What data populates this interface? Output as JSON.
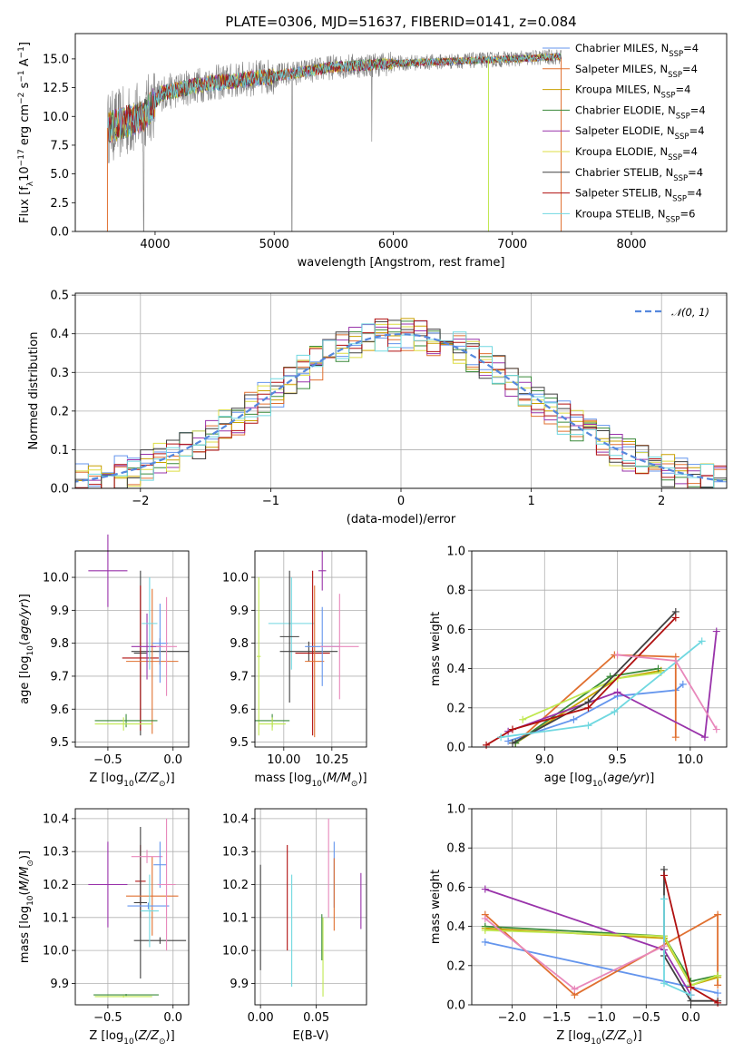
{
  "chart_data": [
    {
      "id": "spectrum",
      "type": "line",
      "title": "PLATE=0306, MJD=51637, FIBERID=0141, z=0.084",
      "xlabel": "wavelength [Angstrom, rest frame]",
      "ylabel": "Flux [f_λ 10^-17 erg cm^-2 s^-1 A^-1]",
      "xlim": [
        3330,
        8800
      ],
      "ylim": [
        0,
        17.2
      ],
      "xticks": [
        "4000",
        "5000",
        "6000",
        "7000",
        "8000"
      ],
      "yticks": [
        "0.0",
        "2.5",
        "5.0",
        "7.5",
        "10.0",
        "12.5",
        "15.0"
      ],
      "data_line": {
        "x_start": 3600,
        "x_end": 7410,
        "color": "#808080"
      },
      "continuum": [
        [
          3600,
          9.0
        ],
        [
          3900,
          10.0
        ],
        [
          4050,
          12.0
        ],
        [
          4400,
          12.8
        ],
        [
          5000,
          13.5
        ],
        [
          5500,
          14.3
        ],
        [
          6000,
          14.6
        ],
        [
          6500,
          14.8
        ],
        [
          7000,
          15.0
        ],
        [
          7400,
          15.2
        ]
      ],
      "legend": [
        {
          "label": "Chabrier MILES, N",
          "sub": "SSP",
          "val": "=4",
          "color": "#6495ed"
        },
        {
          "label": "Salpeter MILES, N",
          "sub": "SSP",
          "val": "=4",
          "color": "#e07030"
        },
        {
          "label": "Kroupa MILES, N",
          "sub": "SSP",
          "val": "=4",
          "color": "#c8a000"
        },
        {
          "label": "Chabrier ELODIE, N",
          "sub": "SSP",
          "val": "=4",
          "color": "#3a8a3a"
        },
        {
          "label": "Salpeter ELODIE, N",
          "sub": "SSP",
          "val": "=4",
          "color": "#9933aa"
        },
        {
          "label": "Kroupa ELODIE, N",
          "sub": "SSP",
          "val": "=4",
          "color": "#dddd44"
        },
        {
          "label": "Chabrier STELIB, N",
          "sub": "SSP",
          "val": "=4",
          "color": "#404040"
        },
        {
          "label": "Salpeter STELIB, N",
          "sub": "SSP",
          "val": "=4",
          "color": "#b01010"
        },
        {
          "label": "Kroupa STELIB, N",
          "sub": "SSP",
          "val": "=6",
          "color": "#70d8e0"
        }
      ]
    },
    {
      "id": "residuals",
      "type": "histogram",
      "xlabel": "(data-model)/error",
      "ylabel": "Normed distribution",
      "xlim": [
        -2.5,
        2.5
      ],
      "ylim": [
        0,
        0.505
      ],
      "xticks": [
        "−2",
        "−1",
        "0",
        "1",
        "2"
      ],
      "yticks": [
        "0.0",
        "0.1",
        "0.2",
        "0.3",
        "0.4",
        "0.5"
      ],
      "bin_width": 0.1,
      "legend": [
        {
          "label": "𝒩(0, 1)",
          "color": "#5588dd"
        }
      ]
    },
    {
      "id": "age_vs_Z",
      "type": "errorbar",
      "xlabel": "Z [log10(Z/Z⊙)]",
      "ylabel": "age [log10(age/yr)]",
      "xlim": [
        -0.75,
        0.12
      ],
      "ylim": [
        9.485,
        10.08
      ],
      "xticks": [
        "−0.5",
        "0.0"
      ],
      "yticks": [
        "9.5",
        "9.6",
        "9.7",
        "9.8",
        "9.9",
        "10.0"
      ],
      "points": [
        {
          "x": -0.5,
          "xerr": 0.15,
          "y": 10.02,
          "yerr": 0.11,
          "color": "#9933aa"
        },
        {
          "x": -0.25,
          "xerr": 0.05,
          "y": 9.77,
          "yerr": 0.25,
          "color": "#404040"
        },
        {
          "x": -0.1,
          "xerr": 0.22,
          "y": 9.775,
          "yerr": 0.04,
          "color": "#404040"
        },
        {
          "x": -0.25,
          "xerr": 0.14,
          "y": 9.755,
          "yerr": 0.22,
          "color": "#b01010"
        },
        {
          "x": -0.16,
          "xerr": 0.2,
          "y": 9.745,
          "yerr": 0.22,
          "color": "#e07030"
        },
        {
          "x": -0.1,
          "xerr": 0.06,
          "y": 9.8,
          "yerr": 0.12,
          "color": "#6495ed"
        },
        {
          "x": -0.2,
          "xerr": 0.12,
          "y": 9.79,
          "yerr": 0.1,
          "color": "#9933aa"
        },
        {
          "x": -0.05,
          "xerr": 0.08,
          "y": 9.79,
          "yerr": 0.15,
          "color": "#e888bb"
        },
        {
          "x": -0.18,
          "xerr": 0.06,
          "y": 9.86,
          "yerr": 0.14,
          "color": "#70d8e0"
        },
        {
          "x": -0.36,
          "xerr": 0.24,
          "y": 9.565,
          "yerr": 0.02,
          "color": "#3a8a3a"
        },
        {
          "x": -0.38,
          "xerr": 0.22,
          "y": 9.555,
          "yerr": 0.02,
          "color": "#c0e850"
        }
      ]
    },
    {
      "id": "age_vs_mass",
      "type": "errorbar",
      "xlabel": "mass [log10(M/M⊙)]",
      "xlim": [
        9.85,
        10.43
      ],
      "ylim": [
        9.485,
        10.08
      ],
      "xticks": [
        "10.00",
        "10.25"
      ],
      "yticks": [
        "9.5",
        "9.6",
        "9.7",
        "9.8",
        "9.9",
        "10.0"
      ],
      "points": [
        {
          "x": 9.87,
          "xerr": 0.01,
          "y": 9.76,
          "yerr": 0.24,
          "color": "#c0e850"
        },
        {
          "x": 10.04,
          "xerr": 0.12,
          "y": 9.86,
          "yerr": 0.14,
          "color": "#70d8e0"
        },
        {
          "x": 10.03,
          "xerr": 0.05,
          "y": 9.82,
          "yerr": 0.2,
          "color": "#404040"
        },
        {
          "x": 10.13,
          "xerr": 0.15,
          "y": 9.775,
          "yerr": 0.03,
          "color": "#404040"
        },
        {
          "x": 10.15,
          "xerr": 0.09,
          "y": 9.77,
          "yerr": 0.25,
          "color": "#b01010"
        },
        {
          "x": 10.16,
          "xerr": 0.05,
          "y": 9.745,
          "yerr": 0.23,
          "color": "#e07030"
        },
        {
          "x": 10.2,
          "xerr": 0.09,
          "y": 9.79,
          "yerr": 0.12,
          "color": "#6495ed"
        },
        {
          "x": 10.2,
          "xerr": 0.02,
          "y": 10.02,
          "yerr": 0.06,
          "color": "#9933aa"
        },
        {
          "x": 10.29,
          "xerr": 0.1,
          "y": 9.79,
          "yerr": 0.16,
          "color": "#e888bb"
        },
        {
          "x": 9.94,
          "xerr": 0.09,
          "y": 9.565,
          "yerr": 0.02,
          "color": "#3a8a3a"
        },
        {
          "x": 9.94,
          "xerr": 0.07,
          "y": 9.555,
          "yerr": 0.02,
          "color": "#c0e850"
        }
      ]
    },
    {
      "id": "weight_vs_age",
      "type": "line",
      "xlabel": "age [log10(age/yr)]",
      "ylabel": "mass weight",
      "xlim": [
        8.5,
        10.25
      ],
      "ylim": [
        0,
        1.0
      ],
      "xticks": [
        "9.0",
        "9.5",
        "10.0"
      ],
      "yticks": [
        "0.0",
        "0.2",
        "0.4",
        "0.6",
        "0.8",
        "1.0"
      ],
      "series": [
        {
          "color": "#6495ed",
          "x": [
            8.75,
            9.2,
            9.5,
            9.9,
            9.95
          ],
          "y": [
            0.03,
            0.14,
            0.26,
            0.29,
            0.32
          ]
        },
        {
          "color": "#e07030",
          "x": [
            8.8,
            9.48,
            9.9,
            9.9
          ],
          "y": [
            0.02,
            0.47,
            0.46,
            0.05
          ]
        },
        {
          "color": "#c8a000",
          "x": [
            8.8,
            9.5,
            9.8
          ],
          "y": [
            0.02,
            0.35,
            0.39
          ]
        },
        {
          "color": "#3a8a3a",
          "x": [
            8.8,
            9.45,
            9.78
          ],
          "y": [
            0.02,
            0.36,
            0.4
          ]
        },
        {
          "color": "#9933aa",
          "x": [
            8.75,
            9.5,
            10.1,
            10.18
          ],
          "y": [
            0.08,
            0.28,
            0.05,
            0.59
          ]
        },
        {
          "color": "#c0e850",
          "x": [
            8.85,
            9.5,
            9.8
          ],
          "y": [
            0.14,
            0.35,
            0.38
          ]
        },
        {
          "color": "#404040",
          "x": [
            8.78,
            9.3,
            9.9
          ],
          "y": [
            0.02,
            0.23,
            0.69
          ]
        },
        {
          "color": "#b01010",
          "x": [
            8.6,
            8.78,
            9.3,
            9.9
          ],
          "y": [
            0.01,
            0.09,
            0.2,
            0.66
          ]
        },
        {
          "color": "#70d8e0",
          "x": [
            8.7,
            9.3,
            9.48,
            10.08
          ],
          "y": [
            0.05,
            0.11,
            0.18,
            0.54
          ]
        },
        {
          "color": "#e888bb",
          "x": [
            9.5,
            9.9,
            10.18
          ],
          "y": [
            0.47,
            0.44,
            0.09
          ]
        }
      ]
    },
    {
      "id": "mass_vs_Z",
      "type": "errorbar",
      "xlabel": "Z [log10(Z/Z⊙)]",
      "ylabel": "mass [log10(M/M⊙)]",
      "xlim": [
        -0.75,
        0.12
      ],
      "ylim": [
        9.835,
        10.43
      ],
      "xticks": [
        "−0.5",
        "0.0"
      ],
      "yticks": [
        "9.9",
        "10.0",
        "10.1",
        "10.2",
        "10.3",
        "10.4"
      ],
      "points": [
        {
          "x": -0.5,
          "xerr": 0.15,
          "y": 10.2,
          "yerr": 0.13,
          "color": "#9933aa"
        },
        {
          "x": -0.25,
          "xerr": 0.04,
          "y": 10.21,
          "yerr": 0.11,
          "color": "#b01010"
        },
        {
          "x": -0.25,
          "xerr": 0.05,
          "y": 10.145,
          "yerr": 0.23,
          "color": "#404040"
        },
        {
          "x": -0.1,
          "xerr": 0.2,
          "y": 10.03,
          "yerr": 0.01,
          "color": "#404040"
        },
        {
          "x": -0.16,
          "xerr": 0.2,
          "y": 10.165,
          "yerr": 0.12,
          "color": "#e07030"
        },
        {
          "x": -0.2,
          "xerr": 0.12,
          "y": 10.285,
          "yerr": 0.02,
          "color": "#e888bb"
        },
        {
          "x": -0.1,
          "xerr": 0.05,
          "y": 10.26,
          "yerr": 0.07,
          "color": "#6495ed"
        },
        {
          "x": -0.19,
          "xerr": 0.16,
          "y": 10.135,
          "yerr": 0.01,
          "color": "#6495ed"
        },
        {
          "x": -0.18,
          "xerr": 0.07,
          "y": 10.12,
          "yerr": 0.11,
          "color": "#70d8e0"
        },
        {
          "x": -0.05,
          "xerr": 0.07,
          "y": 10.2,
          "yerr": 0.2,
          "color": "#e888bb"
        },
        {
          "x": -0.36,
          "xerr": 0.25,
          "y": 9.865,
          "yerr": 0.003,
          "color": "#3a8a3a"
        },
        {
          "x": -0.38,
          "xerr": 0.22,
          "y": 9.86,
          "yerr": 0.003,
          "color": "#c0e850"
        }
      ]
    },
    {
      "id": "ebv",
      "type": "errorbar",
      "xlabel": "E(B-V)",
      "xlim": [
        -0.005,
        0.095
      ],
      "ylim": [
        9.835,
        10.43
      ],
      "xticks": [
        "0.00",
        "0.05"
      ],
      "yticks": [
        "9.9",
        "10.0",
        "10.1",
        "10.2",
        "10.3",
        "10.4"
      ],
      "points": [
        {
          "x": 0.0,
          "xerr": 0,
          "y": 10.1,
          "yerr": 0.16,
          "color": "#404040"
        },
        {
          "x": 0.024,
          "xerr": 0,
          "y": 10.16,
          "yerr": 0.16,
          "color": "#b01010"
        },
        {
          "x": 0.028,
          "xerr": 0,
          "y": 10.06,
          "yerr": 0.17,
          "color": "#70d8e0"
        },
        {
          "x": 0.055,
          "xerr": 0,
          "y": 10.04,
          "yerr": 0.07,
          "color": "#3a8a3a"
        },
        {
          "x": 0.056,
          "xerr": 0,
          "y": 9.98,
          "yerr": 0.12,
          "color": "#c0e850"
        },
        {
          "x": 0.061,
          "xerr": 0,
          "y": 10.25,
          "yerr": 0.15,
          "color": "#e888bb"
        },
        {
          "x": 0.066,
          "xerr": 0,
          "y": 10.23,
          "yerr": 0.1,
          "color": "#6495ed"
        },
        {
          "x": 0.066,
          "xerr": 0,
          "y": 10.17,
          "yerr": 0.11,
          "color": "#e07030"
        },
        {
          "x": 0.09,
          "xerr": 0,
          "y": 10.15,
          "yerr": 0.085,
          "color": "#9933aa"
        }
      ]
    },
    {
      "id": "weight_vs_Z",
      "type": "line",
      "xlabel": "Z [log10(Z/Z⊙)]",
      "ylabel": "mass weight",
      "xlim": [
        -2.45,
        0.4
      ],
      "ylim": [
        0,
        1.0
      ],
      "xticks": [
        "−2.0",
        "−1.5",
        "−1.0",
        "−0.5",
        "0.0"
      ],
      "yticks": [
        "0.0",
        "0.2",
        "0.4",
        "0.6",
        "0.8",
        "1.0"
      ],
      "series": [
        {
          "color": "#6495ed",
          "x": [
            -2.3,
            0.3
          ],
          "y": [
            0.32,
            0.06
          ]
        },
        {
          "color": "#e07030",
          "x": [
            -2.3,
            -1.3,
            0.3,
            0.3
          ],
          "y": [
            0.46,
            0.05,
            0.46,
            0.1
          ]
        },
        {
          "color": "#c8a000",
          "x": [
            -2.3,
            -0.3,
            0.0,
            0.3
          ],
          "y": [
            0.39,
            0.34,
            0.1,
            0.14
          ]
        },
        {
          "color": "#3a8a3a",
          "x": [
            -2.3,
            -0.3,
            0.0,
            0.3
          ],
          "y": [
            0.4,
            0.35,
            0.12,
            0.15
          ]
        },
        {
          "color": "#9933aa",
          "x": [
            -2.3,
            -0.3,
            0.0
          ],
          "y": [
            0.59,
            0.28,
            0.05
          ]
        },
        {
          "color": "#c0e850",
          "x": [
            -2.3,
            -0.3,
            0.0,
            0.3
          ],
          "y": [
            0.38,
            0.35,
            0.1,
            0.15
          ]
        },
        {
          "color": "#404040",
          "x": [
            -0.3,
            -0.3,
            0.0,
            0.3
          ],
          "y": [
            0.69,
            0.25,
            0.02,
            0.02
          ]
        },
        {
          "color": "#b01010",
          "x": [
            -0.3,
            0.0,
            0.3
          ],
          "y": [
            0.66,
            0.09,
            0.01
          ]
        },
        {
          "color": "#70d8e0",
          "x": [
            -0.3,
            -0.3,
            0.0
          ],
          "y": [
            0.54,
            0.11,
            0.05
          ]
        },
        {
          "color": "#e888bb",
          "x": [
            -2.3,
            -1.3,
            -0.3
          ],
          "y": [
            0.44,
            0.08,
            0.3
          ]
        }
      ]
    }
  ]
}
